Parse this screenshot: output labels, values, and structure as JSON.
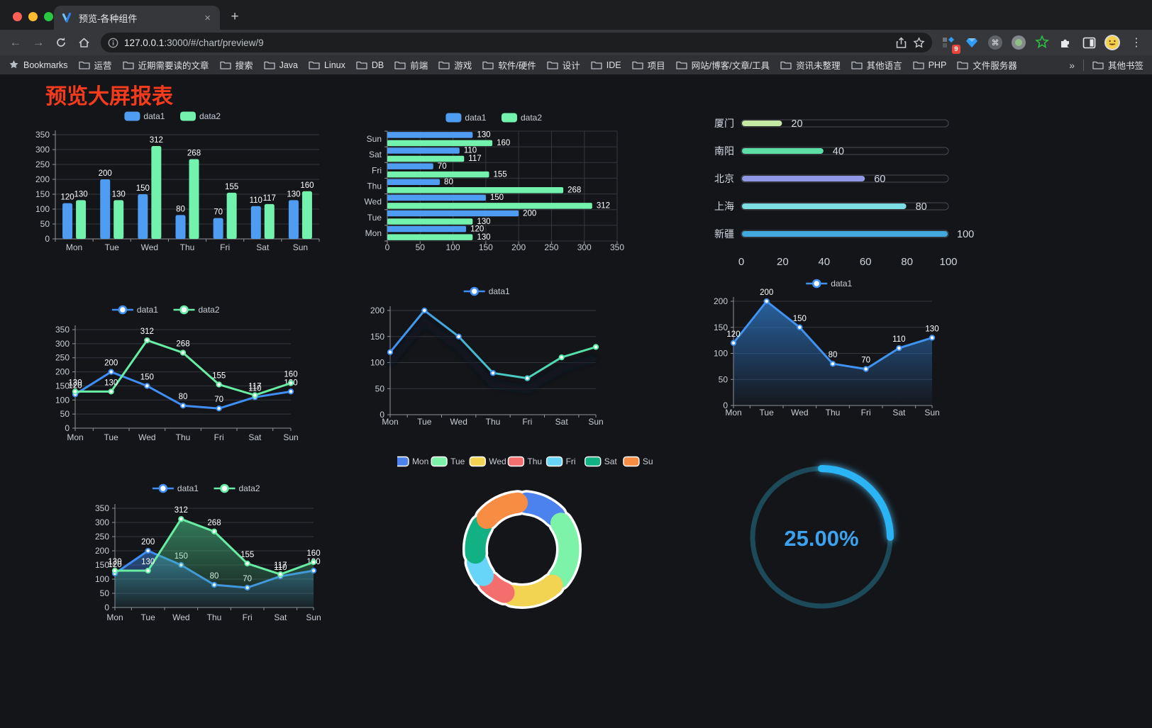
{
  "browser": {
    "tab": {
      "title": "预览-各种组件",
      "close_glyph": "×",
      "new_tab_glyph": "+"
    },
    "url_host": "127.0.0.1",
    "url_path": ":3000/#/chart/preview/9",
    "extension_badge": "9",
    "menu_glyph": "⋮",
    "bookmarks_label": "Bookmarks",
    "bookmark_folders": [
      "运营",
      "近期需要读的文章",
      "搜索",
      "Java",
      "Linux",
      "DB",
      "前端",
      "游戏",
      "软件/硬件",
      "设计",
      "IDE",
      "项目",
      "网站/博客/文章/工具",
      "资讯未整理",
      "其他语言",
      "PHP",
      "文件服务器"
    ],
    "overflow_glyph": "»",
    "other_bookmarks_label": "其他书签"
  },
  "page": {
    "title": "预览大屏报表",
    "title_color": "#f53b1d",
    "background": "#141519"
  },
  "chart_data": [
    {
      "id": "bar-vertical",
      "type": "bar",
      "categories": [
        "Mon",
        "Tue",
        "Wed",
        "Thu",
        "Fri",
        "Sat",
        "Sun"
      ],
      "series": [
        {
          "name": "data1",
          "color": "#4f9df2",
          "values": [
            120,
            200,
            150,
            80,
            70,
            110,
            130
          ]
        },
        {
          "name": "data2",
          "color": "#72f2ad",
          "values": [
            130,
            130,
            312,
            268,
            155,
            117,
            160
          ]
        }
      ],
      "ylim": [
        0,
        350
      ],
      "ytick": 50,
      "value_labels": true,
      "legend_position": "top"
    },
    {
      "id": "bar-horizontal",
      "type": "hbar",
      "categories": [
        "Mon",
        "Tue",
        "Wed",
        "Thu",
        "Fri",
        "Sat",
        "Sun"
      ],
      "display_order_top_to_bottom": [
        "Sun",
        "Sat",
        "Fri",
        "Thu",
        "Wed",
        "Tue",
        "Mon"
      ],
      "series": [
        {
          "name": "data1",
          "color": "#4f9df2",
          "values": [
            120,
            200,
            150,
            80,
            70,
            110,
            130
          ]
        },
        {
          "name": "data2",
          "color": "#72f2ad",
          "values": [
            130,
            130,
            312,
            268,
            155,
            117,
            160
          ]
        }
      ],
      "xlim": [
        0,
        350
      ],
      "xtick": 50,
      "value_labels": true,
      "legend_position": "top"
    },
    {
      "id": "progress-list",
      "type": "progress",
      "rows": [
        {
          "label": "厦门",
          "value": 20,
          "color": "#c5e9a2"
        },
        {
          "label": "南阳",
          "value": 40,
          "color": "#5bdfa7"
        },
        {
          "label": "北京",
          "value": 60,
          "color": "#9097e4"
        },
        {
          "label": "上海",
          "value": 80,
          "color": "#7cdde2"
        },
        {
          "label": "新疆",
          "value": 100,
          "color": "#41a9dd"
        }
      ],
      "max": 100,
      "xticks": [
        0,
        20,
        40,
        60,
        80,
        100
      ]
    },
    {
      "id": "line-two-series",
      "type": "line",
      "categories": [
        "Mon",
        "Tue",
        "Wed",
        "Thu",
        "Fri",
        "Sat",
        "Sun"
      ],
      "series": [
        {
          "name": "data1",
          "color": "#3e8ef5",
          "values": [
            120,
            200,
            150,
            80,
            70,
            110,
            130
          ]
        },
        {
          "name": "data2",
          "color": "#67eda4",
          "values": [
            130,
            130,
            312,
            268,
            155,
            117,
            160
          ]
        }
      ],
      "ylim": [
        0,
        350
      ],
      "ytick": 50,
      "value_labels": true,
      "legend_position": "top"
    },
    {
      "id": "line-gradient",
      "type": "line",
      "categories": [
        "Mon",
        "Tue",
        "Wed",
        "Thu",
        "Fri",
        "Sat",
        "Sun"
      ],
      "series": [
        {
          "name": "data1",
          "gradient": [
            "#3e8ef5",
            "#49c2c9",
            "#55e8a2"
          ],
          "values": [
            120,
            200,
            150,
            80,
            70,
            110,
            130
          ],
          "shadow": true
        }
      ],
      "ylim": [
        0,
        200
      ],
      "ytick": 50,
      "value_labels": false,
      "legend_position": "top"
    },
    {
      "id": "line-area",
      "type": "line",
      "categories": [
        "Mon",
        "Tue",
        "Wed",
        "Thu",
        "Fri",
        "Sat",
        "Sun"
      ],
      "series": [
        {
          "name": "data1",
          "color": "#4093f0",
          "area": [
            "rgba(45,115,190,0.80)",
            "rgba(45,115,190,0.03)"
          ],
          "values": [
            120,
            200,
            150,
            80,
            70,
            110,
            130
          ]
        }
      ],
      "ylim": [
        0,
        200
      ],
      "ytick": 50,
      "value_labels": true,
      "legend_position": "top"
    },
    {
      "id": "line-two-area",
      "type": "line",
      "categories": [
        "Mon",
        "Tue",
        "Wed",
        "Thu",
        "Fri",
        "Sat",
        "Sun"
      ],
      "series": [
        {
          "name": "data1",
          "color": "#3e8ef5",
          "area": [
            "rgba(62,130,230,0.55)",
            "rgba(62,130,230,0.04)"
          ],
          "values": [
            120,
            200,
            150,
            80,
            70,
            110,
            130
          ]
        },
        {
          "name": "data2",
          "color": "#67eda4",
          "area": [
            "rgba(70,190,130,0.60)",
            "rgba(70,190,130,0.05)"
          ],
          "values": [
            130,
            130,
            312,
            268,
            155,
            117,
            160
          ]
        }
      ],
      "ylim": [
        0,
        350
      ],
      "ytick": 50,
      "value_labels": true,
      "legend_position": "top"
    },
    {
      "id": "donut",
      "type": "donut",
      "slices": [
        {
          "label": "Mon",
          "value": 120,
          "color": "#4b82ee"
        },
        {
          "label": "Tue",
          "value": 200,
          "color": "#7df2a9"
        },
        {
          "label": "Wed",
          "value": 150,
          "color": "#f3d452"
        },
        {
          "label": "Thu",
          "value": 80,
          "color": "#f56e6e"
        },
        {
          "label": "Fri",
          "value": 70,
          "color": "#67d5f7"
        },
        {
          "label": "Sat",
          "value": 110,
          "color": "#12b184"
        },
        {
          "label": "Sun",
          "value": 130,
          "color": "#f78c43"
        }
      ],
      "legend_position": "top"
    },
    {
      "id": "gauge",
      "type": "gauge",
      "value_percent": 25,
      "display": "25.00%",
      "arc_color": "#2bb4f4",
      "track_color": "#1c4a58",
      "text_color": "#3da2ee"
    }
  ]
}
